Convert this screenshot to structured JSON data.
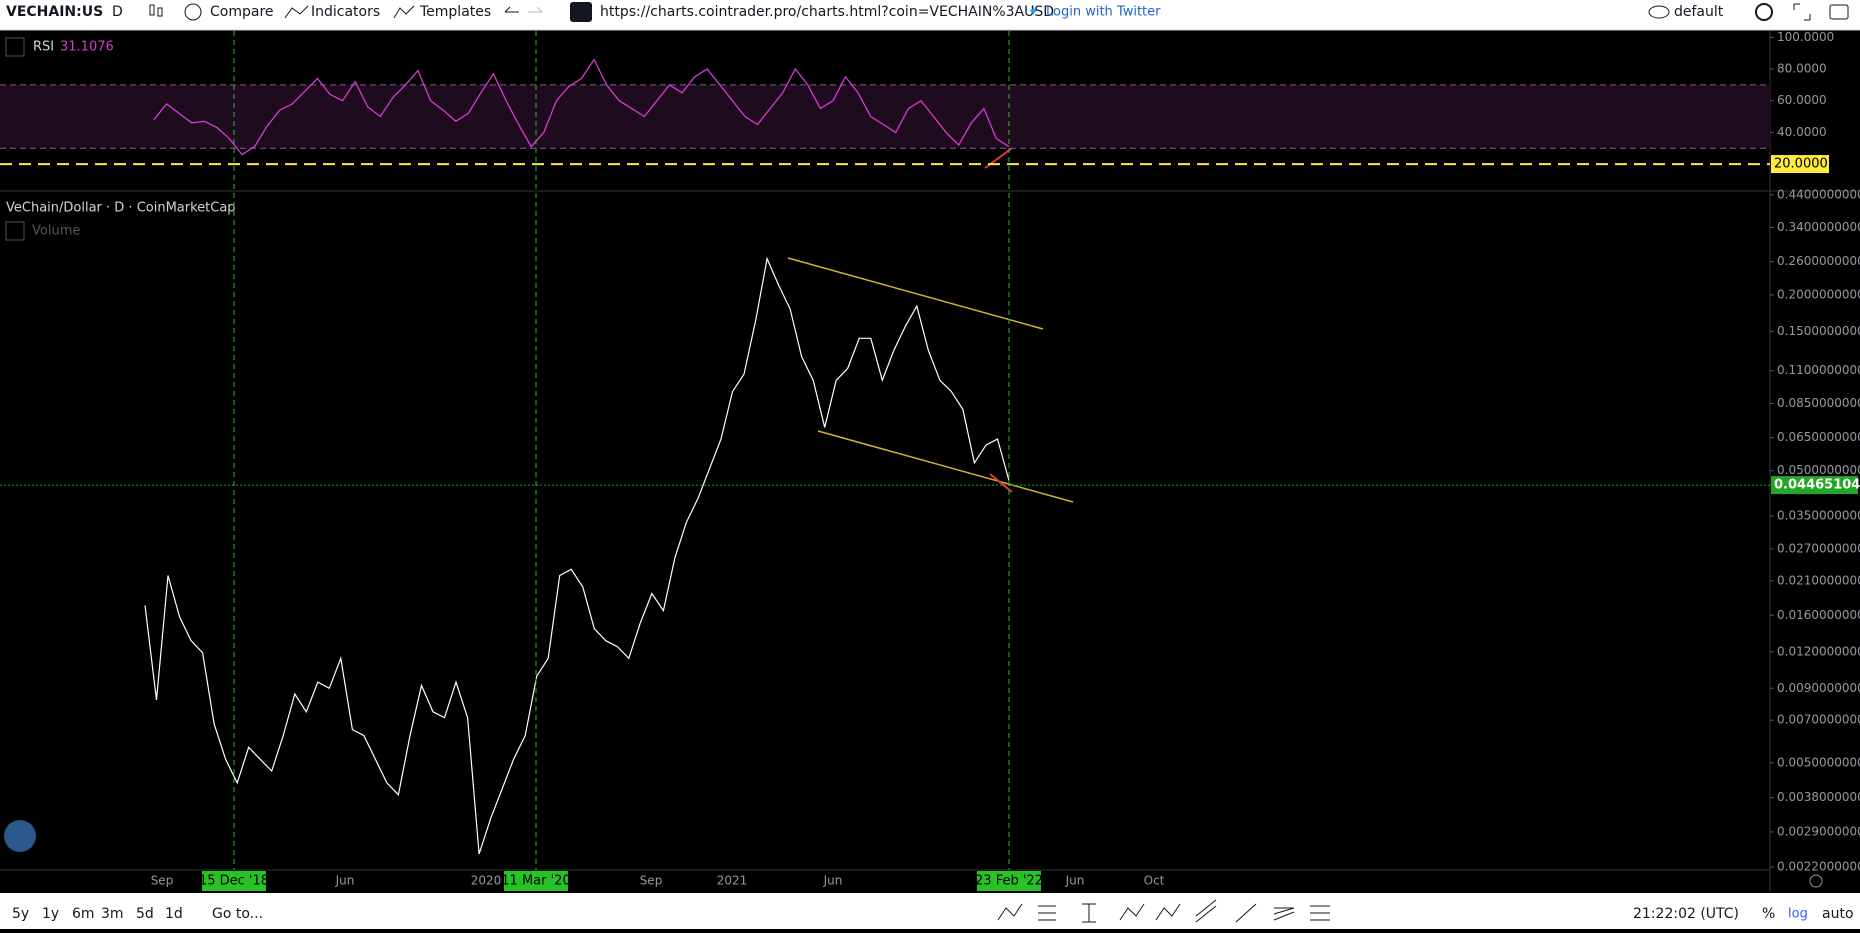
{
  "toolbar": {
    "symbol": "VECHAIN:US",
    "interval": "D",
    "compare": "Compare",
    "indicators": "Indicators",
    "templates": "Templates",
    "url": "https://charts.cointrader.pro/charts.html?coin=VECHAIN%3AUSD",
    "login": "Login with Twitter",
    "layout": "default"
  },
  "chart_data": [
    {
      "type": "line",
      "title": "RSI",
      "current_value": 31.1076,
      "color": "#d63bd6",
      "values": [
        48,
        58,
        52,
        46,
        47,
        43,
        36,
        26,
        31,
        44,
        54,
        58,
        66,
        74,
        64,
        60,
        72,
        56,
        50,
        62,
        70,
        79,
        60,
        54,
        47,
        52,
        65,
        77,
        60,
        45,
        31,
        40,
        60,
        69,
        74,
        86,
        70,
        60,
        55,
        50,
        60,
        70,
        65,
        75,
        80,
        70,
        60,
        50,
        45,
        55,
        65,
        80,
        70,
        55,
        60,
        75,
        65,
        50,
        45,
        40,
        55,
        60,
        50,
        40,
        32,
        46,
        55,
        36,
        31
      ],
      "ylim": [
        3,
        104
      ],
      "yticks": [
        {
          "value": 100,
          "label": "100.0000"
        },
        {
          "value": 80,
          "label": "80.0000"
        },
        {
          "value": 60,
          "label": "60.0000"
        },
        {
          "value": 40,
          "label": "40.0000"
        }
      ],
      "levels": [
        70,
        30
      ],
      "alert_level": {
        "value": 20,
        "label": "20.0000",
        "color": "#ffeb3b"
      }
    },
    {
      "type": "line",
      "title": "VeChain/Dollar · D · CoinMarketCap",
      "volume_label": "Volume",
      "color": "#ffffff",
      "log_scale": true,
      "values": [
        0.0173,
        0.0082,
        0.0219,
        0.0158,
        0.0131,
        0.0119,
        0.0068,
        0.00514,
        0.00427,
        0.00565,
        0.00514,
        0.00469,
        0.0062,
        0.0086,
        0.00748,
        0.00945,
        0.009,
        0.0114,
        0.0065,
        0.0062,
        0.00514,
        0.00427,
        0.00389,
        0.0062,
        0.0092,
        0.00748,
        0.00714,
        0.00945,
        0.00714,
        0.00244,
        0.00322,
        0.00407,
        0.00514,
        0.0062,
        0.0099,
        0.0114,
        0.0219,
        0.023,
        0.02,
        0.0144,
        0.0131,
        0.0125,
        0.0114,
        0.0151,
        0.019,
        0.0166,
        0.0252,
        0.0333,
        0.0402,
        0.0508,
        0.0642,
        0.0933,
        0.107,
        0.163,
        0.266,
        0.216,
        0.179,
        0.123,
        0.102,
        0.0704,
        0.102,
        0.112,
        0.142,
        0.142,
        0.102,
        0.129,
        0.156,
        0.183,
        0.129,
        0.102,
        0.0933,
        0.081,
        0.0532,
        0.0612,
        0.0642,
        0.0463
      ],
      "ylim": [
        0.0022,
        0.45
      ],
      "yticks": [
        {
          "value": 0.44,
          "label": "0.4400000000"
        },
        {
          "value": 0.34,
          "label": "0.3400000000"
        },
        {
          "value": 0.26,
          "label": "0.2600000000"
        },
        {
          "value": 0.2,
          "label": "0.2000000000"
        },
        {
          "value": 0.15,
          "label": "0.1500000000"
        },
        {
          "value": 0.11,
          "label": "0.1100000000"
        },
        {
          "value": 0.085,
          "label": "0.0850000000"
        },
        {
          "value": 0.065,
          "label": "0.0650000000"
        },
        {
          "value": 0.05,
          "label": "0.0500000000"
        },
        {
          "value": 0.035,
          "label": "0.0350000000"
        },
        {
          "value": 0.027,
          "label": "0.0270000000"
        },
        {
          "value": 0.021,
          "label": "0.0210000000"
        },
        {
          "value": 0.016,
          "label": "0.0160000000"
        },
        {
          "value": 0.012,
          "label": "0.0120000000"
        },
        {
          "value": 0.009,
          "label": "0.0090000000"
        },
        {
          "value": 0.007,
          "label": "0.0070000000"
        },
        {
          "value": 0.005,
          "label": "0.0050000000"
        },
        {
          "value": 0.0038,
          "label": "0.0038000000"
        },
        {
          "value": 0.0029,
          "label": "0.0029000000"
        },
        {
          "value": 0.0022,
          "label": "0.0022000000"
        }
      ],
      "last_price": {
        "value": 0.04465104,
        "label": "0.0446510400"
      },
      "x_labels": [
        "Sep",
        "Jun",
        "2020",
        "Sep",
        "2021",
        "Jun",
        "Jun",
        "Oct"
      ],
      "markers": [
        "15 Dec '18",
        "11 Mar '20",
        "23 Feb '22"
      ]
    }
  ],
  "bottom_bar": {
    "ranges": [
      "5y",
      "1y",
      "6m",
      "3m",
      "5d",
      "1d"
    ],
    "goto": "Go to...",
    "clock": "21:22:02 (UTC)",
    "percent": "%",
    "log": "log",
    "auto": "auto"
  }
}
